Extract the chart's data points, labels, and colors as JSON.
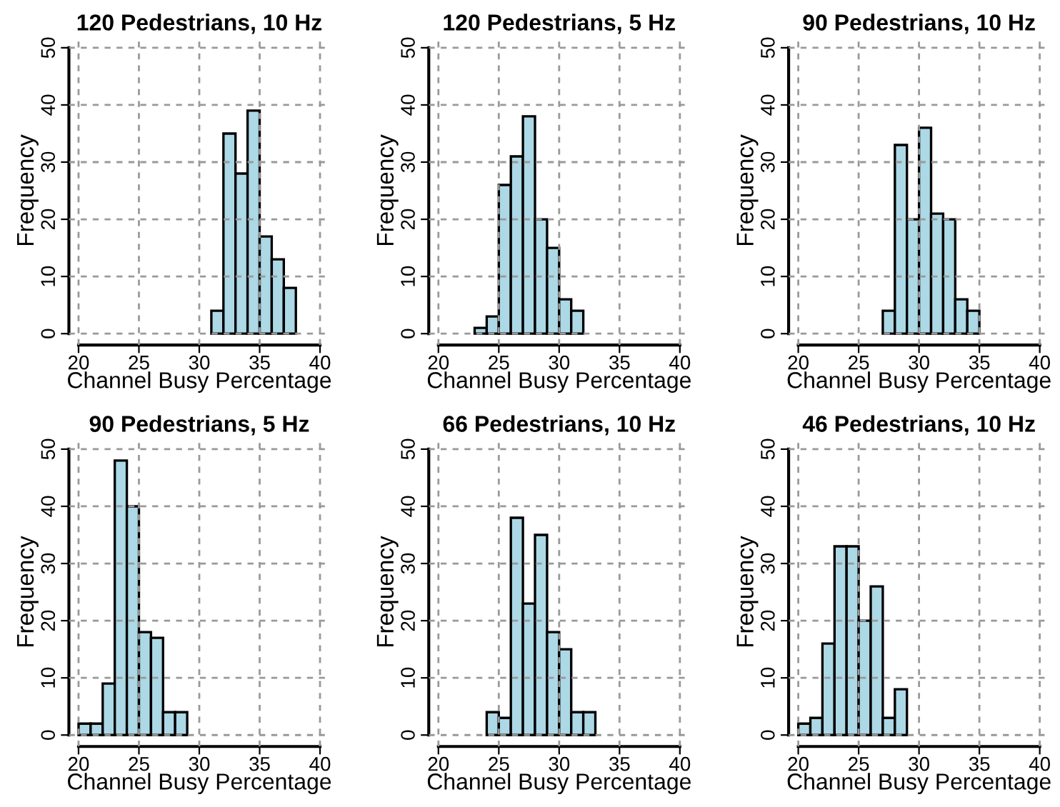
{
  "chart_data": [
    {
      "type": "histogram",
      "title": "120 Pedestrians, 10 Hz",
      "xlabel": "Channel Busy Percentage",
      "ylabel": "Frequency",
      "bins": [
        31,
        32,
        33,
        34,
        35,
        36,
        37,
        38
      ],
      "values": [
        4,
        35,
        28,
        39,
        17,
        13,
        8
      ],
      "color": "#add8e6",
      "xlim": [
        20,
        40
      ],
      "ylim": [
        0,
        50
      ],
      "xticks": [
        20,
        25,
        30,
        35,
        40
      ],
      "yticks": [
        0,
        10,
        20,
        30,
        40,
        50
      ],
      "grid": true
    },
    {
      "type": "histogram",
      "title": "120 Pedestrians, 5 Hz",
      "xlabel": "Channel Busy Percentage",
      "ylabel": "Frequency",
      "bins": [
        23,
        24,
        25,
        26,
        27,
        28,
        29,
        30,
        31,
        32
      ],
      "values": [
        1,
        3,
        26,
        31,
        38,
        20,
        15,
        6,
        4
      ],
      "color": "#add8e6",
      "xlim": [
        20,
        40
      ],
      "ylim": [
        0,
        50
      ],
      "xticks": [
        20,
        25,
        30,
        35,
        40
      ],
      "yticks": [
        0,
        10,
        20,
        30,
        40,
        50
      ],
      "grid": true
    },
    {
      "type": "histogram",
      "title": "90 Pedestrians, 10 Hz",
      "xlabel": "Channel Busy Percentage",
      "ylabel": "Frequency",
      "bins": [
        27,
        28,
        29,
        30,
        31,
        32,
        33,
        34,
        35
      ],
      "values": [
        4,
        33,
        20,
        36,
        21,
        20,
        6,
        4
      ],
      "color": "#add8e6",
      "xlim": [
        20,
        40
      ],
      "ylim": [
        0,
        50
      ],
      "xticks": [
        20,
        25,
        30,
        35,
        40
      ],
      "yticks": [
        0,
        10,
        20,
        30,
        40,
        50
      ],
      "grid": true
    },
    {
      "type": "histogram",
      "title": "90 Pedestrians, 5 Hz",
      "xlabel": "Channel Busy Percentage",
      "ylabel": "Frequency",
      "bins": [
        20,
        21,
        22,
        23,
        24,
        25,
        26,
        27,
        28,
        29
      ],
      "values": [
        2,
        2,
        9,
        48,
        40,
        18,
        17,
        4,
        4
      ],
      "color": "#add8e6",
      "xlim": [
        20,
        40
      ],
      "ylim": [
        0,
        50
      ],
      "xticks": [
        20,
        25,
        30,
        35,
        40
      ],
      "yticks": [
        0,
        10,
        20,
        30,
        40,
        50
      ],
      "grid": true
    },
    {
      "type": "histogram",
      "title": "66 Pedestrians, 10 Hz",
      "xlabel": "Channel Busy Percentage",
      "ylabel": "Frequency",
      "bins": [
        24,
        25,
        26,
        27,
        28,
        29,
        30,
        31,
        32,
        33
      ],
      "values": [
        4,
        3,
        38,
        23,
        35,
        18,
        15,
        4,
        4
      ],
      "color": "#add8e6",
      "xlim": [
        20,
        40
      ],
      "ylim": [
        0,
        50
      ],
      "xticks": [
        20,
        25,
        30,
        35,
        40
      ],
      "yticks": [
        0,
        10,
        20,
        30,
        40,
        50
      ],
      "grid": true
    },
    {
      "type": "histogram",
      "title": "46 Pedestrians, 10 Hz",
      "xlabel": "Channel Busy Percentage",
      "ylabel": "Frequency",
      "bins": [
        20,
        21,
        22,
        23,
        24,
        25,
        26,
        27,
        28,
        29
      ],
      "values": [
        2,
        3,
        16,
        33,
        33,
        20,
        26,
        3,
        8
      ],
      "color": "#add8e6",
      "xlim": [
        20,
        40
      ],
      "ylim": [
        0,
        50
      ],
      "xticks": [
        20,
        25,
        30,
        35,
        40
      ],
      "yticks": [
        0,
        10,
        20,
        30,
        40,
        50
      ],
      "grid": true
    }
  ]
}
